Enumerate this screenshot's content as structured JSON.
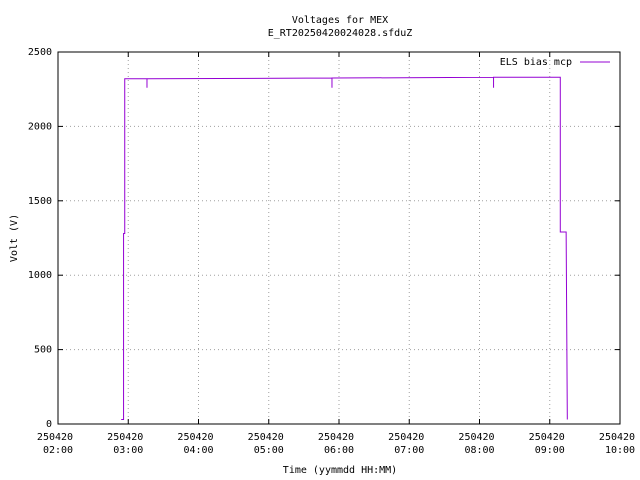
{
  "chart_data": {
    "type": "line",
    "title": "Voltages for MEX",
    "subtitle": "E_RT20250420024028.sfduZ",
    "x_label": "Time (yymmdd HH:MM)",
    "y_label": "Volt (V)",
    "x": [
      "250420 02:54",
      "250420 02:56",
      "250420 02:56",
      "250420 02:57",
      "250420 02:57",
      "250420 03:16",
      "250420 03:16",
      "250420 03:16",
      "250420 05:54",
      "250420 05:54",
      "250420 05:54",
      "250420 08:12",
      "250420 08:12",
      "250420 08:12",
      "250420 09:09",
      "250420 09:09",
      "250420 09:14",
      "250420 09:15"
    ],
    "series": [
      {
        "name": "ELS bias mcp",
        "color": "#9400d3",
        "values": [
          30,
          30,
          1280,
          1280,
          2320,
          2320,
          2260,
          2320,
          2325,
          2260,
          2325,
          2330,
          2260,
          2330,
          2330,
          1290,
          1290,
          30
        ]
      }
    ],
    "xlim": [
      "250420 02:00",
      "250420 10:00"
    ],
    "xticks": [
      "250420 02:00",
      "250420 03:00",
      "250420 04:00",
      "250420 05:00",
      "250420 06:00",
      "250420 07:00",
      "250420 08:00",
      "250420 09:00",
      "250420 10:00"
    ],
    "ylim": [
      0,
      2500
    ],
    "yticks": [
      0,
      500,
      1000,
      1500,
      2000,
      2500
    ],
    "grid": true,
    "legend": "top-right"
  }
}
